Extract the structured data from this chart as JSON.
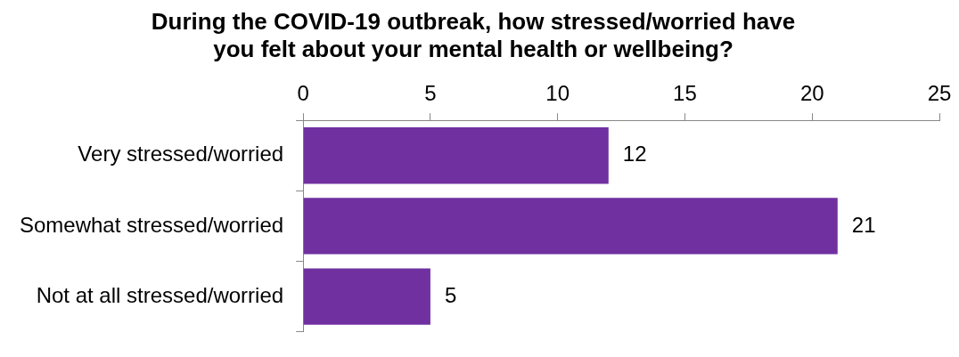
{
  "chart_data": {
    "type": "bar",
    "orientation": "horizontal",
    "title": [
      "During the COVID-19 outbreak, how stressed/worried have",
      "you felt about your mental health or wellbeing?"
    ],
    "categories": [
      "Very stressed/worried",
      "Somewhat stressed/worried",
      "Not at all stressed/worried"
    ],
    "values": [
      12,
      21,
      5
    ],
    "color": "#7030a0",
    "xlim": [
      0,
      25
    ],
    "xticks": [
      0,
      5,
      10,
      15,
      20,
      25
    ],
    "data_labels": true,
    "legend": false
  }
}
